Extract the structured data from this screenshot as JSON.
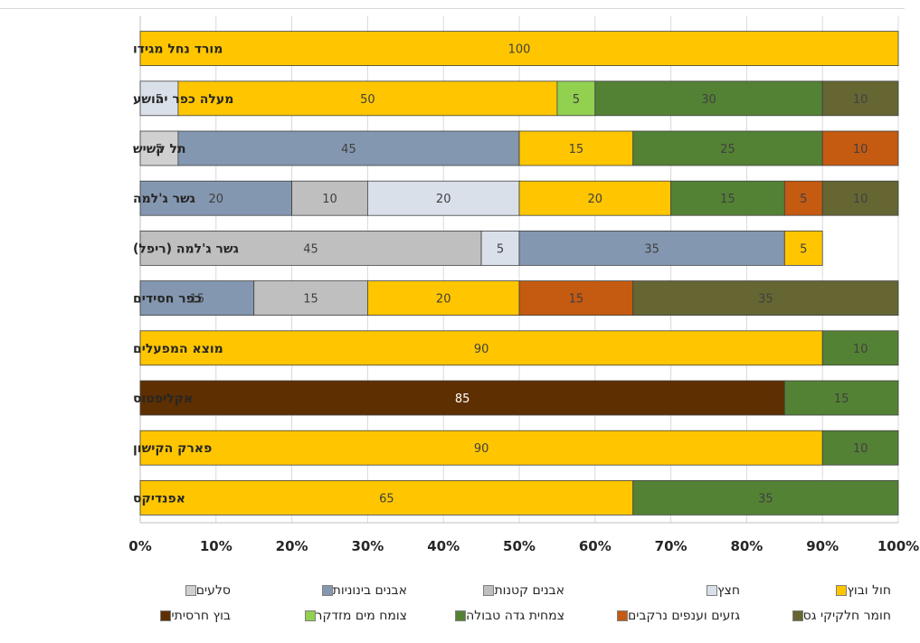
{
  "chart_data": {
    "type": "bar",
    "orientation": "horizontal",
    "stacked": "percent",
    "categories": [
      "מורד נחל מגידו",
      "מעלה כפר יהושע",
      "תל קשיש",
      "גשר ג'למה",
      "גשר ג'למה  (ריפל)",
      "כפר חסידים",
      "מוצא המפעלים",
      "אקליפטוס",
      "פארק הקישון",
      "אפנדיקס"
    ],
    "xlim": [
      0,
      100
    ],
    "xticks": [
      "0%",
      "10%",
      "20%",
      "30%",
      "40%",
      "50%",
      "60%",
      "70%",
      "80%",
      "90%",
      "100%"
    ],
    "grid": true,
    "legend_position": "bottom",
    "series": [
      {
        "name": "סלעים",
        "color": "#d0d0d0",
        "values": [
          null,
          null,
          5,
          null,
          null,
          null,
          null,
          null,
          null,
          null
        ],
        "labels": [
          "",
          "",
          "5",
          "",
          "",
          "",
          "",
          "",
          "",
          ""
        ]
      },
      {
        "name": "אבנים בינוניות",
        "color": "#8497b0",
        "values": [
          null,
          null,
          45,
          20,
          null,
          15,
          null,
          null,
          null,
          null
        ],
        "labels": [
          "",
          "",
          "45",
          "20",
          "",
          "15",
          "",
          "",
          "",
          ""
        ]
      },
      {
        "name": "אבנים קטנות",
        "color": "#bfbfbf",
        "values": [
          null,
          null,
          null,
          10,
          45,
          15,
          null,
          null,
          null,
          null
        ],
        "labels": [
          "",
          "",
          "",
          "10",
          "45",
          "15",
          "",
          "",
          "",
          ""
        ]
      },
      {
        "name": "חצץ",
        "color": "#dae0ea",
        "values": [
          null,
          5,
          null,
          20,
          5,
          null,
          null,
          null,
          null,
          null
        ],
        "labels": [
          "",
          "5",
          "",
          "20",
          "5",
          "",
          "",
          "",
          "",
          ""
        ]
      },
      {
        "name": "אבנים בינוניות",
        "color": "#8497b0",
        "values": [
          null,
          null,
          null,
          null,
          35,
          null,
          null,
          null,
          null,
          null
        ],
        "labels": [
          "",
          "",
          "",
          "",
          "35",
          "",
          "",
          "",
          "",
          ""
        ]
      },
      {
        "name": "חול ובוץ",
        "color": "#ffc600",
        "values": [
          100,
          50,
          15,
          20,
          5,
          20,
          90,
          null,
          90,
          65
        ],
        "labels": [
          "100",
          "50",
          "15",
          "20",
          "5",
          "20",
          "90",
          "",
          "90",
          "65"
        ]
      },
      {
        "name": "צומח מים מזדקר",
        "color": "#92d050",
        "values": [
          null,
          5,
          null,
          null,
          null,
          null,
          null,
          null,
          null,
          null
        ],
        "labels": [
          "",
          "5",
          "",
          "",
          "",
          "",
          "",
          "",
          "",
          ""
        ]
      },
      {
        "name": "בוץ חרסיתי",
        "color": "#5e2f00",
        "values": [
          null,
          null,
          null,
          null,
          null,
          null,
          null,
          85,
          null,
          null
        ],
        "labels": [
          "",
          "",
          "",
          "",
          "",
          "",
          "",
          "85",
          "",
          ""
        ]
      },
      {
        "name": "צמחית גדה טבולה",
        "color": "#548235",
        "values": [
          null,
          30,
          25,
          15,
          null,
          null,
          10,
          15,
          10,
          35
        ],
        "labels": [
          "",
          "30",
          "25",
          "15",
          "",
          "",
          "10",
          "15",
          "10",
          "35"
        ]
      },
      {
        "name": "גזעים וענפים נרקבים",
        "color": "#c55a11",
        "values": [
          null,
          null,
          10,
          5,
          null,
          15,
          null,
          null,
          null,
          null
        ],
        "labels": [
          "",
          "",
          "10",
          "5",
          "",
          "15",
          "",
          "",
          "",
          ""
        ]
      },
      {
        "name": "חומר חלקיקי גס",
        "color": "#666633",
        "values": [
          null,
          10,
          null,
          10,
          null,
          35,
          null,
          null,
          null,
          null
        ],
        "labels": [
          "",
          "10",
          "",
          "10",
          "",
          "35",
          "",
          "",
          "",
          ""
        ]
      }
    ],
    "legend": [
      {
        "name": "סלעים",
        "color": "#d0d0d0"
      },
      {
        "name": "אבנים בינוניות",
        "color": "#8497b0"
      },
      {
        "name": "אבנים קטנות",
        "color": "#bfbfbf"
      },
      {
        "name": "חצץ",
        "color": "#dae0ea"
      },
      {
        "name": "חול ובוץ",
        "color": "#ffc600"
      },
      {
        "name": "בוץ חרסיתי",
        "color": "#5e2f00"
      },
      {
        "name": "צומח מים מזדקר",
        "color": "#92d050"
      },
      {
        "name": "צמחית גדה טבולה",
        "color": "#548235"
      },
      {
        "name": "גזעים וענפים נרקבים",
        "color": "#c55a11"
      },
      {
        "name": "חומר חלקיקי גס",
        "color": "#666633"
      }
    ]
  }
}
